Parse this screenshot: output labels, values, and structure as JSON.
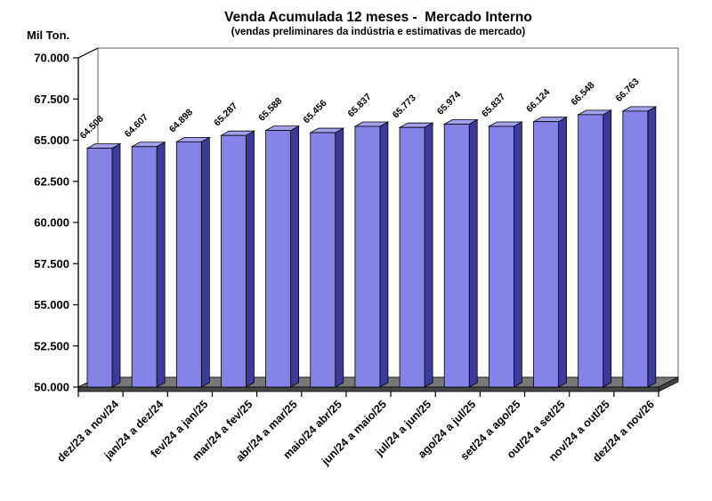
{
  "chart_data": {
    "type": "bar",
    "view": "3d-column",
    "title": "Venda Acumulada 12 meses -  Mercado Interno",
    "subtitle": "(vendas preliminares da indústria e estimativas de mercado)",
    "ylabel": "Mil Ton.",
    "xlabel": "",
    "legend": "none",
    "grid": false,
    "ylim": [
      50000,
      70000
    ],
    "ytick_step": 2500,
    "ytick_labels": [
      "70.000",
      "67.500",
      "65.000",
      "62.500",
      "60.000",
      "57.500",
      "55.000",
      "52.500",
      "50.000"
    ],
    "categories": [
      "dez/23 a nov/24",
      "jan/24 a dez/24",
      "fev/24 a jan/25",
      "mar/24 a fev/25",
      "abr/24 a mar/25",
      "maio/24 abr/25",
      "jun/24 a maio/25",
      "jul/24 a jun/25",
      "ago/24 a jul/25",
      "set/24 a ago/25",
      "out/24 a set/25",
      "nov/24 a out/25",
      "dez/24 a nov/26"
    ],
    "values": [
      64508,
      64607,
      64898,
      65287,
      65588,
      65456,
      65837,
      65773,
      65974,
      65837,
      66124,
      66548,
      66763
    ],
    "value_labels": [
      "64.508",
      "64.607",
      "64.898",
      "65.287",
      "65.588",
      "65.456",
      "65.837",
      "65.773",
      "65.974",
      "65.837",
      "66.124",
      "66.548",
      "66.763"
    ],
    "colors": {
      "bar_front": "#8583e8",
      "bar_top": "#a3a1ee",
      "bar_side": "#3d3b99",
      "bar_outline": "#000000",
      "floor_top": "#787878",
      "floor_side": "#454545",
      "wall_fill": "#ffffff",
      "wall_stroke": "#5f5f5f",
      "axis": "#000000",
      "text": "#000000"
    }
  }
}
